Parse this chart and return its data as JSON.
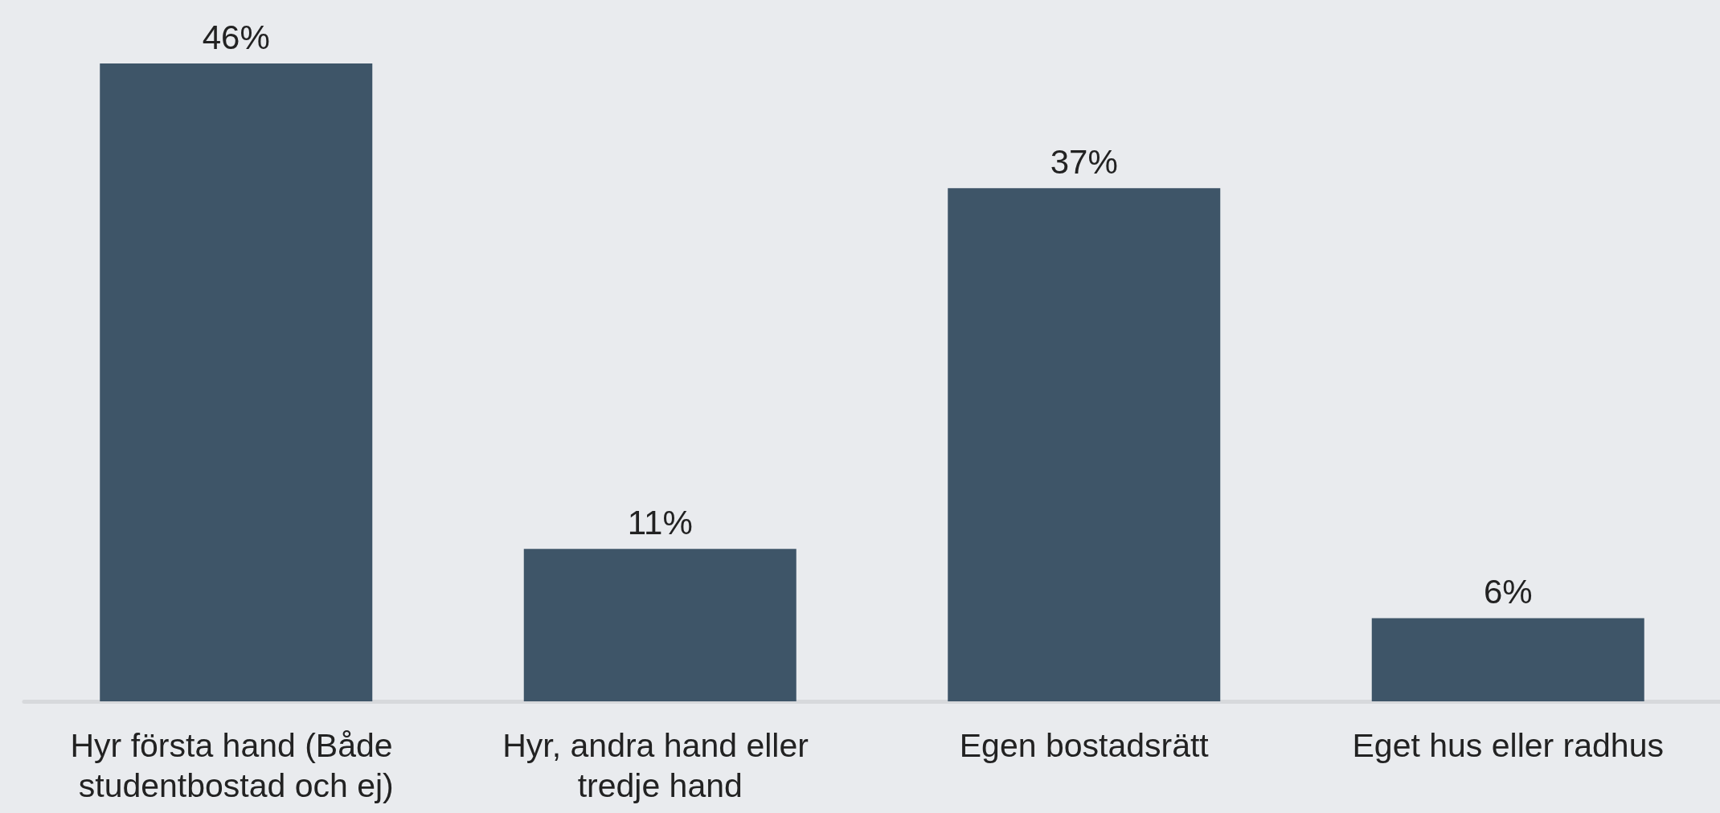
{
  "chart_data": {
    "type": "bar",
    "categories": [
      "Hyr första hand (Både studentbostad och ej)",
      "Hyr, andra hand eller tredje hand",
      "Egen bostadsrätt",
      "Eget hus eller radhus"
    ],
    "values": [
      46,
      11,
      37,
      6
    ],
    "value_labels": [
      "46%",
      "11%",
      "37%",
      "6%"
    ],
    "color": "#3e5568"
  }
}
